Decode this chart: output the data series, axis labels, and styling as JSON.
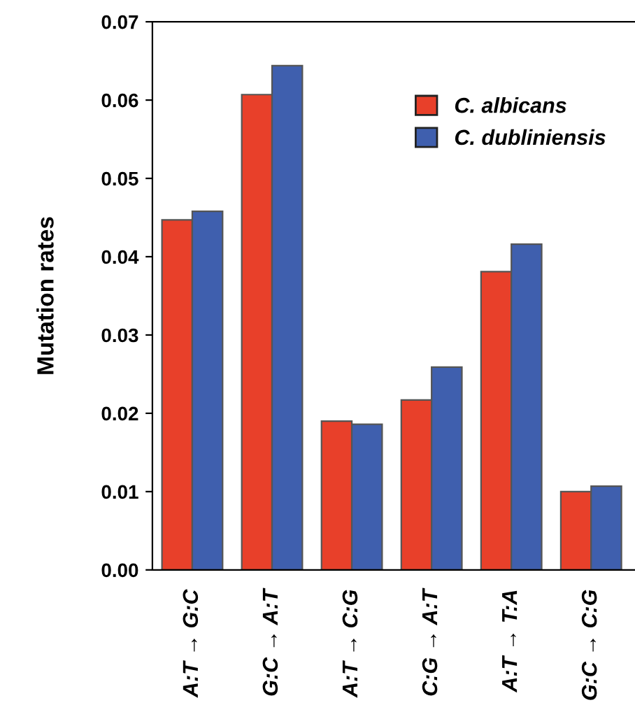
{
  "chart_data": {
    "type": "bar",
    "ylabel": "Mutation rates",
    "categories": [
      "A:T → G:C",
      "G:C → A:T",
      "A:T → C:G",
      "C:G → A:T",
      "A:T → T:A",
      "G:C → C:G"
    ],
    "series": [
      {
        "name": "C. albicans",
        "color": "#e8402a",
        "values": [
          0.0447,
          0.0607,
          0.019,
          0.0217,
          0.0381,
          0.01
        ]
      },
      {
        "name": "C. dubliniensis",
        "color": "#3f5fae",
        "values": [
          0.0458,
          0.0644,
          0.0186,
          0.0259,
          0.0416,
          0.0107
        ]
      }
    ],
    "ylim": [
      0,
      0.07
    ],
    "yticks": [
      {
        "value": 0,
        "label": "0.00"
      },
      {
        "value": 0.01,
        "label": "0.01"
      },
      {
        "value": 0.02,
        "label": "0.02"
      },
      {
        "value": 0.03,
        "label": "0.03"
      },
      {
        "value": 0.04,
        "label": "0.04"
      },
      {
        "value": 0.05,
        "label": "0.05"
      },
      {
        "value": 0.06,
        "label": "0.06"
      },
      {
        "value": 0.07,
        "label": "0.07"
      }
    ],
    "grid": false,
    "legend": "top right"
  }
}
